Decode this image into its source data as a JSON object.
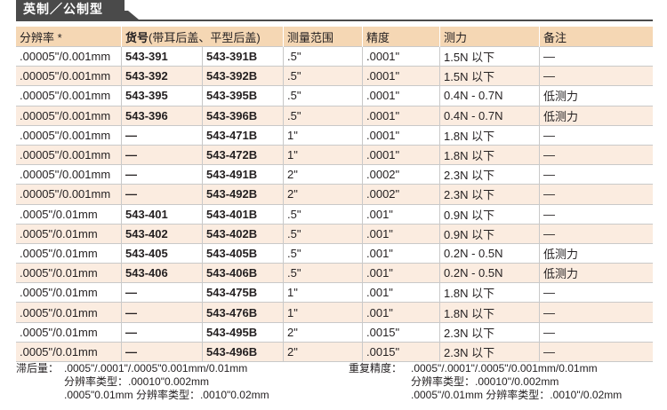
{
  "tab_title": "英制／公制型",
  "headers": {
    "resolution": "分辨率 *",
    "part_no": "货号",
    "part_no_note": "(带耳后盖、平型后盖)",
    "range": "测量范围",
    "accuracy": "精度",
    "force": "测力",
    "remarks": "备注"
  },
  "rows": [
    {
      "res": ".00005\"/0.001mm",
      "no1": "543-391",
      "no2": "543-391B",
      "range": ".5\"",
      "acc": ".0001\"",
      "force": "1.5N 以下",
      "remark": "—"
    },
    {
      "res": ".00005\"/0.001mm",
      "no1": "543-392",
      "no2": "543-392B",
      "range": ".5\"",
      "acc": ".0001\"",
      "force": "1.5N 以下",
      "remark": "—"
    },
    {
      "res": ".00005\"/0.001mm",
      "no1": "543-395",
      "no2": "543-395B",
      "range": ".5\"",
      "acc": ".0001\"",
      "force": "0.4N - 0.7N",
      "remark": "低测力"
    },
    {
      "res": ".00005\"/0.001mm",
      "no1": "543-396",
      "no2": "543-396B",
      "range": ".5\"",
      "acc": ".0001\"",
      "force": "0.4N - 0.7N",
      "remark": "低测力"
    },
    {
      "res": ".00005\"/0.001mm",
      "no1": "—",
      "no2": "543-471B",
      "range": "1\"",
      "acc": ".0001\"",
      "force": "1.8N 以下",
      "remark": "—"
    },
    {
      "res": ".00005\"/0.001mm",
      "no1": "—",
      "no2": "543-472B",
      "range": "1\"",
      "acc": ".0001\"",
      "force": "1.8N 以下",
      "remark": "—"
    },
    {
      "res": ".00005\"/0.001mm",
      "no1": "—",
      "no2": "543-491B",
      "range": "2\"",
      "acc": ".0002\"",
      "force": "2.3N 以下",
      "remark": "—"
    },
    {
      "res": ".00005\"/0.001mm",
      "no1": "—",
      "no2": "543-492B",
      "range": "2\"",
      "acc": ".0002\"",
      "force": "2.3N 以下",
      "remark": "—"
    },
    {
      "res": ".0005\"/0.01mm",
      "no1": "543-401",
      "no2": "543-401B",
      "range": ".5\"",
      "acc": ".001\"",
      "force": "0.9N 以下",
      "remark": "—"
    },
    {
      "res": ".0005\"/0.01mm",
      "no1": "543-402",
      "no2": "543-402B",
      "range": ".5\"",
      "acc": ".001\"",
      "force": "0.9N 以下",
      "remark": "—"
    },
    {
      "res": ".0005\"/0.01mm",
      "no1": "543-405",
      "no2": "543-405B",
      "range": ".5\"",
      "acc": ".001\"",
      "force": "0.2N - 0.5N",
      "remark": "低测力"
    },
    {
      "res": ".0005\"/0.01mm",
      "no1": "543-406",
      "no2": "543-406B",
      "range": ".5\"",
      "acc": ".001\"",
      "force": "0.2N - 0.5N",
      "remark": "低测力"
    },
    {
      "res": ".0005\"/0.01mm",
      "no1": "—",
      "no2": "543-475B",
      "range": "1\"",
      "acc": ".001\"",
      "force": "1.8N 以下",
      "remark": "—"
    },
    {
      "res": ".0005\"/0.01mm",
      "no1": "—",
      "no2": "543-476B",
      "range": "1\"",
      "acc": ".001\"",
      "force": "1.8N 以下",
      "remark": "—"
    },
    {
      "res": ".0005\"/0.01mm",
      "no1": "—",
      "no2": "543-495B",
      "range": "2\"",
      "acc": ".0015\"",
      "force": "2.3N 以下",
      "remark": "—"
    },
    {
      "res": ".0005\"/0.01mm",
      "no1": "—",
      "no2": "543-496B",
      "range": "2\"",
      "acc": ".0015\"",
      "force": "2.3N 以下",
      "remark": "—"
    }
  ],
  "footnotes": {
    "hysteresis_label": "滞后量：",
    "hysteresis_lines": [
      ".0005\"/.0001\"/.0005\"0.001mm/0.01mm",
      "分辨率类型：.00010\"0.002mm",
      ".0005\"0.01mm 分辨率类型：.0010\"0.02mm"
    ],
    "repeat_label": "重复精度：",
    "repeat_lines": [
      ".0005\"/.0001\"/.0005\"/0.001mm/0.01mm",
      "分辨率类型：.00010\"/0.002mm",
      ".0005\"/0.01mm 分辨率类型：.0010\"/0.02mm"
    ]
  }
}
